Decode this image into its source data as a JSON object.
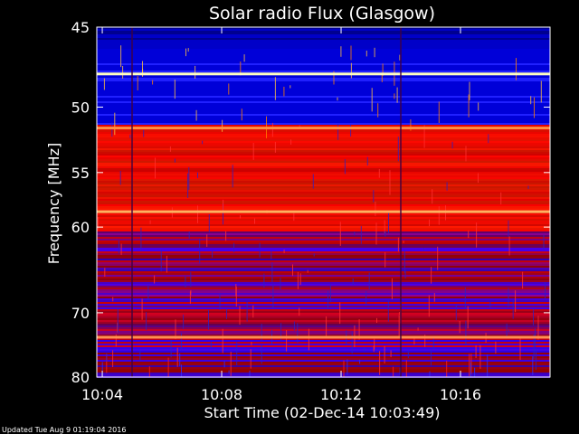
{
  "chart_data": {
    "type": "heatmap",
    "title": "Solar radio Flux (Glasgow)",
    "xlabel": "Start Time (02-Dec-14 10:03:49)",
    "ylabel": "Frequency [MHz]",
    "x_range": [
      "10:03:49",
      "10:19:00"
    ],
    "x_ticks": [
      "10:04",
      "10:08",
      "10:12",
      "10:16"
    ],
    "y_range": [
      45,
      80
    ],
    "y_ticks": [
      45,
      50,
      55,
      60,
      70,
      80
    ],
    "y_scale": "reciprocal",
    "colormap": [
      "#000000",
      "#0000ff",
      "#ff0000",
      "#ffff80",
      "#ffffff"
    ],
    "bright_lanes_mhz": [
      47.8,
      51.5,
      58.5,
      73.5
    ],
    "gaps_time": [
      "10:05",
      "10:14"
    ],
    "footer": "Updated Tue Aug  9 01:19:04 2016"
  }
}
